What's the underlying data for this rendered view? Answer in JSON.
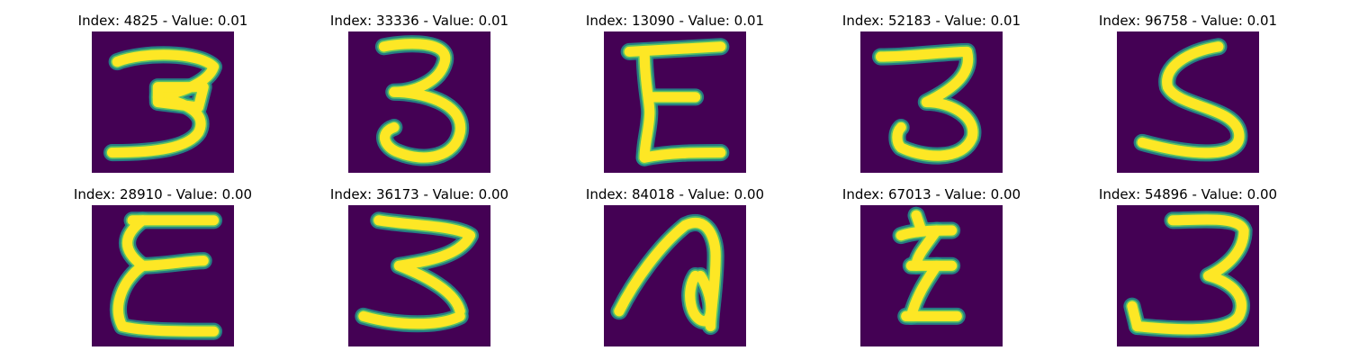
{
  "colors": {
    "background": "#440154",
    "stroke_main": "#fde725",
    "stroke_edge": "#21918c",
    "stroke_mid": "#5ec962"
  },
  "panels": [
    {
      "title": "Index: 4825 - Value: 0.01",
      "glyph": "3"
    },
    {
      "title": "Index: 33336 - Value: 0.01",
      "glyph": "3"
    },
    {
      "title": "Index: 13090 - Value: 0.01",
      "glyph": "E"
    },
    {
      "title": "Index: 52183 - Value: 0.01",
      "glyph": "3"
    },
    {
      "title": "Index: 96758 - Value: 0.01",
      "glyph": "S"
    },
    {
      "title": "Index: 28910 - Value: 0.00",
      "glyph": "E"
    },
    {
      "title": "Index: 36173 - Value: 0.00",
      "glyph": "3"
    },
    {
      "title": "Index: 84018 - Value: 0.00",
      "glyph": "a"
    },
    {
      "title": "Index: 67013 - Value: 0.00",
      "glyph": "z"
    },
    {
      "title": "Index: 54896 - Value: 0.00",
      "glyph": "3"
    }
  ]
}
